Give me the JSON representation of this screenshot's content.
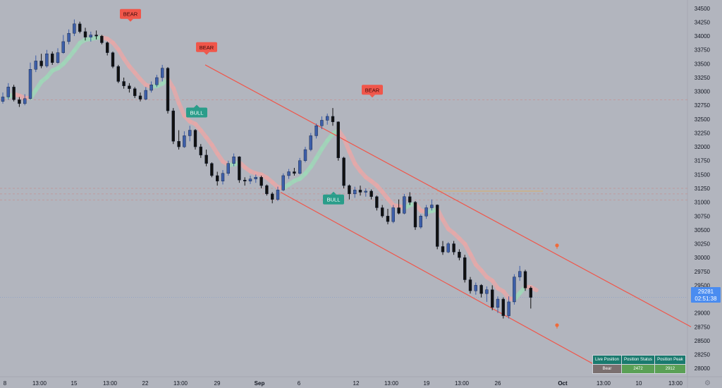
{
  "chart_data": {
    "type": "candlestick",
    "x_ticks": [
      "8",
      "13:00",
      "15",
      "13:00",
      "22",
      "13:00",
      "29",
      "Sep",
      "6",
      "12",
      "13:00",
      "19",
      "13:00",
      "26",
      "Oct",
      "13:00",
      "10",
      "13:00"
    ],
    "y_ticks": [
      28000,
      28250,
      28500,
      28750,
      29000,
      29250,
      29500,
      29750,
      30000,
      30250,
      30500,
      30750,
      31000,
      31250,
      31500,
      31750,
      32000,
      32250,
      32500,
      32750,
      33000,
      33250,
      33500,
      33750,
      34000,
      34250,
      34500
    ],
    "ylim": [
      27900,
      34600
    ],
    "colors": {
      "up": "#3d5ea8",
      "down": "#111111",
      "channel": "#f0564a",
      "bear": "#f0564a",
      "bull": "#2a9d8a",
      "price_tag": "#4a8cf0"
    },
    "signals": [
      {
        "label": "BEAR",
        "price": 34400
      },
      {
        "label": "BEAR",
        "price": 33800
      },
      {
        "label": "BULL",
        "price": 32620
      },
      {
        "label": "BEAR",
        "price": 33030
      },
      {
        "label": "BULL",
        "price": 31050
      }
    ],
    "channel": {
      "upper": {
        "start": 33480,
        "end": 28750
      },
      "lower": {
        "start": 31180,
        "end": 27950
      }
    },
    "horizontal_levels": [
      32850,
      31250,
      31150,
      31040
    ],
    "current_price": {
      "price": "29281",
      "countdown": "02:51:38"
    },
    "candles": [
      {
        "o": 32820,
        "h": 32980,
        "l": 32780,
        "c": 32900
      },
      {
        "o": 32900,
        "h": 33150,
        "l": 32850,
        "c": 33080
      },
      {
        "o": 33080,
        "h": 33120,
        "l": 32820,
        "c": 32850
      },
      {
        "o": 32850,
        "h": 32900,
        "l": 32720,
        "c": 32780
      },
      {
        "o": 32780,
        "h": 32950,
        "l": 32750,
        "c": 32870
      },
      {
        "o": 32870,
        "h": 33520,
        "l": 32850,
        "c": 33400
      },
      {
        "o": 33400,
        "h": 33650,
        "l": 33350,
        "c": 33550
      },
      {
        "o": 33550,
        "h": 33680,
        "l": 33420,
        "c": 33460
      },
      {
        "o": 33460,
        "h": 33750,
        "l": 33430,
        "c": 33680
      },
      {
        "o": 33680,
        "h": 33720,
        "l": 33480,
        "c": 33520
      },
      {
        "o": 33520,
        "h": 33780,
        "l": 33500,
        "c": 33700
      },
      {
        "o": 33700,
        "h": 34020,
        "l": 33680,
        "c": 33900
      },
      {
        "o": 33900,
        "h": 34120,
        "l": 33850,
        "c": 34050
      },
      {
        "o": 34050,
        "h": 34300,
        "l": 34000,
        "c": 34220
      },
      {
        "o": 34220,
        "h": 34260,
        "l": 34050,
        "c": 34080
      },
      {
        "o": 34080,
        "h": 34150,
        "l": 33920,
        "c": 33980
      },
      {
        "o": 33980,
        "h": 34080,
        "l": 33900,
        "c": 34020
      },
      {
        "o": 34020,
        "h": 34100,
        "l": 33940,
        "c": 34000
      },
      {
        "o": 34000,
        "h": 34020,
        "l": 33850,
        "c": 33880
      },
      {
        "o": 33880,
        "h": 33900,
        "l": 33650,
        "c": 33700
      },
      {
        "o": 33700,
        "h": 33720,
        "l": 33420,
        "c": 33450
      },
      {
        "o": 33450,
        "h": 33480,
        "l": 33150,
        "c": 33180
      },
      {
        "o": 33180,
        "h": 33250,
        "l": 33050,
        "c": 33100
      },
      {
        "o": 33100,
        "h": 33150,
        "l": 32980,
        "c": 33050
      },
      {
        "o": 33050,
        "h": 33080,
        "l": 32880,
        "c": 32920
      },
      {
        "o": 32920,
        "h": 32980,
        "l": 32820,
        "c": 32860
      },
      {
        "o": 32860,
        "h": 33080,
        "l": 32840,
        "c": 33020
      },
      {
        "o": 33020,
        "h": 33180,
        "l": 32980,
        "c": 33120
      },
      {
        "o": 33120,
        "h": 33300,
        "l": 33080,
        "c": 33250
      },
      {
        "o": 33250,
        "h": 33480,
        "l": 33180,
        "c": 33420
      },
      {
        "o": 33420,
        "h": 33440,
        "l": 32600,
        "c": 32650
      },
      {
        "o": 32650,
        "h": 32700,
        "l": 32050,
        "c": 32100
      },
      {
        "o": 32100,
        "h": 32300,
        "l": 31950,
        "c": 32000
      },
      {
        "o": 32000,
        "h": 32280,
        "l": 31980,
        "c": 32200
      },
      {
        "o": 32200,
        "h": 32380,
        "l": 32100,
        "c": 32300
      },
      {
        "o": 32300,
        "h": 32320,
        "l": 31950,
        "c": 32000
      },
      {
        "o": 32000,
        "h": 32050,
        "l": 31800,
        "c": 31850
      },
      {
        "o": 31850,
        "h": 31950,
        "l": 31650,
        "c": 31700
      },
      {
        "o": 31700,
        "h": 31720,
        "l": 31450,
        "c": 31480
      },
      {
        "o": 31480,
        "h": 31550,
        "l": 31300,
        "c": 31380
      },
      {
        "o": 31380,
        "h": 31580,
        "l": 31320,
        "c": 31520
      },
      {
        "o": 31520,
        "h": 31750,
        "l": 31480,
        "c": 31700
      },
      {
        "o": 31700,
        "h": 31880,
        "l": 31650,
        "c": 31820
      },
      {
        "o": 31820,
        "h": 31830,
        "l": 31350,
        "c": 31400
      },
      {
        "o": 31400,
        "h": 31450,
        "l": 31300,
        "c": 31380
      },
      {
        "o": 31380,
        "h": 31480,
        "l": 31330,
        "c": 31420
      },
      {
        "o": 31420,
        "h": 31500,
        "l": 31350,
        "c": 31450
      },
      {
        "o": 31450,
        "h": 31480,
        "l": 31250,
        "c": 31300
      },
      {
        "o": 31300,
        "h": 31320,
        "l": 31120,
        "c": 31150
      },
      {
        "o": 31150,
        "h": 31180,
        "l": 30980,
        "c": 31050
      },
      {
        "o": 31050,
        "h": 31280,
        "l": 31020,
        "c": 31220
      },
      {
        "o": 31220,
        "h": 31520,
        "l": 31200,
        "c": 31480
      },
      {
        "o": 31480,
        "h": 31600,
        "l": 31420,
        "c": 31550
      },
      {
        "o": 31550,
        "h": 31620,
        "l": 31480,
        "c": 31520
      },
      {
        "o": 31520,
        "h": 31800,
        "l": 31500,
        "c": 31750
      },
      {
        "o": 31750,
        "h": 32000,
        "l": 31720,
        "c": 31950
      },
      {
        "o": 31950,
        "h": 32250,
        "l": 31920,
        "c": 32200
      },
      {
        "o": 32200,
        "h": 32420,
        "l": 32150,
        "c": 32380
      },
      {
        "o": 32380,
        "h": 32550,
        "l": 32320,
        "c": 32480
      },
      {
        "o": 32480,
        "h": 32600,
        "l": 32400,
        "c": 32550
      },
      {
        "o": 32550,
        "h": 32700,
        "l": 32380,
        "c": 32450
      },
      {
        "o": 32450,
        "h": 32460,
        "l": 31750,
        "c": 31800
      },
      {
        "o": 31800,
        "h": 31820,
        "l": 31250,
        "c": 31300
      },
      {
        "o": 31300,
        "h": 31320,
        "l": 31050,
        "c": 31150
      },
      {
        "o": 31150,
        "h": 31280,
        "l": 31080,
        "c": 31220
      },
      {
        "o": 31220,
        "h": 31300,
        "l": 31120,
        "c": 31180
      },
      {
        "o": 31180,
        "h": 31250,
        "l": 31100,
        "c": 31200
      },
      {
        "o": 31200,
        "h": 31230,
        "l": 31050,
        "c": 31100
      },
      {
        "o": 31100,
        "h": 31120,
        "l": 30850,
        "c": 30900
      },
      {
        "o": 30900,
        "h": 30950,
        "l": 30720,
        "c": 30750
      },
      {
        "o": 30750,
        "h": 30880,
        "l": 30600,
        "c": 30650
      },
      {
        "o": 30650,
        "h": 30950,
        "l": 30620,
        "c": 30900
      },
      {
        "o": 30900,
        "h": 31050,
        "l": 30780,
        "c": 30800
      },
      {
        "o": 30800,
        "h": 31150,
        "l": 30780,
        "c": 31100
      },
      {
        "o": 31100,
        "h": 31180,
        "l": 30950,
        "c": 31000
      },
      {
        "o": 31000,
        "h": 31020,
        "l": 30500,
        "c": 30550
      },
      {
        "o": 30550,
        "h": 30780,
        "l": 30520,
        "c": 30750
      },
      {
        "o": 30750,
        "h": 30950,
        "l": 30700,
        "c": 30900
      },
      {
        "o": 30900,
        "h": 31050,
        "l": 30850,
        "c": 30950
      },
      {
        "o": 30950,
        "h": 30960,
        "l": 30150,
        "c": 30200
      },
      {
        "o": 30200,
        "h": 30300,
        "l": 30050,
        "c": 30100
      },
      {
        "o": 30100,
        "h": 30280,
        "l": 30080,
        "c": 30250
      },
      {
        "o": 30250,
        "h": 30300,
        "l": 30050,
        "c": 30100
      },
      {
        "o": 30100,
        "h": 30150,
        "l": 29950,
        "c": 30000
      },
      {
        "o": 30000,
        "h": 30050,
        "l": 29550,
        "c": 29600
      },
      {
        "o": 29600,
        "h": 29650,
        "l": 29350,
        "c": 29400
      },
      {
        "o": 29400,
        "h": 29550,
        "l": 29330,
        "c": 29500
      },
      {
        "o": 29500,
        "h": 29520,
        "l": 29280,
        "c": 29350
      },
      {
        "o": 29350,
        "h": 29480,
        "l": 29200,
        "c": 29420
      },
      {
        "o": 29420,
        "h": 29500,
        "l": 29050,
        "c": 29100
      },
      {
        "o": 29100,
        "h": 29300,
        "l": 29000,
        "c": 29250
      },
      {
        "o": 29250,
        "h": 29280,
        "l": 28900,
        "c": 28950
      },
      {
        "o": 28950,
        "h": 29300,
        "l": 28900,
        "c": 29200
      },
      {
        "o": 29200,
        "h": 29700,
        "l": 29150,
        "c": 29650
      },
      {
        "o": 29650,
        "h": 29850,
        "l": 29580,
        "c": 29750
      },
      {
        "o": 29750,
        "h": 29780,
        "l": 29400,
        "c": 29450
      },
      {
        "o": 29450,
        "h": 29480,
        "l": 29080,
        "c": 29281
      }
    ]
  },
  "position_table": {
    "headers": [
      "Live Position",
      "Position Status",
      "Position Peak"
    ],
    "values": [
      "Bear",
      "2472",
      "2912"
    ]
  }
}
